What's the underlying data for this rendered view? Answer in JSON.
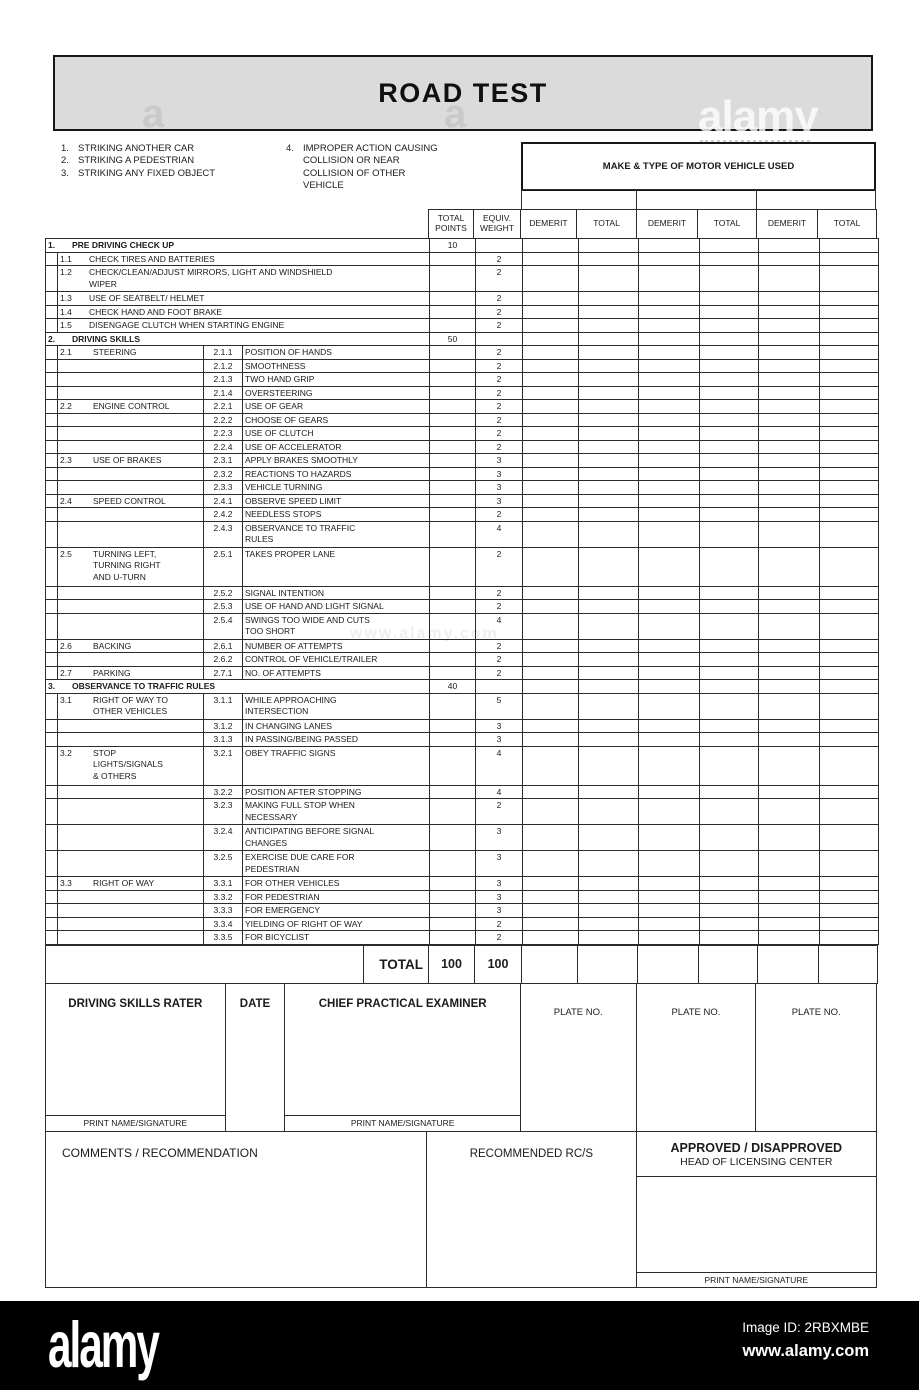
{
  "title": "ROAD TEST",
  "collision_notes": {
    "left": [
      {
        "num": "1.",
        "text": "STRIKING ANOTHER CAR"
      },
      {
        "num": "2.",
        "text": "STRIKING A PEDESTRIAN"
      },
      {
        "num": "3.",
        "text": "STRIKING ANY FIXED OBJECT"
      }
    ],
    "right": {
      "num": "4.",
      "text": "IMPROPER ACTION CAUSING\nCOLLISION OR NEAR\nCOLLISION OF OTHER\nVEHICLE"
    }
  },
  "vehicle_section": {
    "header": "MAKE & TYPE OF MOTOR VEHICLE USED"
  },
  "score_table": {
    "columns": [
      "TOTAL\nPOINTS",
      "EQUIV.\nWEIGHT",
      "DEMERIT",
      "TOTAL",
      "DEMERIT",
      "TOTAL",
      "DEMERIT",
      "TOTAL"
    ],
    "rows": [
      {
        "type": "section",
        "num": "1.",
        "title": "PRE DRIVING CHECK UP",
        "points": "10"
      },
      {
        "type": "simple",
        "num": "1.1",
        "text": "CHECK TIRES AND BATTERIES",
        "weight": "2"
      },
      {
        "type": "simple",
        "num": "1.2",
        "text": "CHECK/CLEAN/ADJUST MIRRORS, LIGHT AND WINDSHIELD\nWIPER",
        "weight": "2"
      },
      {
        "type": "simple",
        "num": "1.3",
        "text": "USE OF SEATBELT/ HELMET",
        "weight": "2"
      },
      {
        "type": "simple",
        "num": "1.4",
        "text": "CHECK HAND AND FOOT BRAKE",
        "weight": "2"
      },
      {
        "type": "simple",
        "num": "1.5",
        "text": "DISENGAGE CLUTCH WHEN STARTING ENGINE",
        "weight": "2"
      },
      {
        "type": "section",
        "num": "2.",
        "title": "DRIVING SKILLS",
        "points": "50"
      },
      {
        "type": "detail",
        "cat_num": "2.1",
        "cat": "STEERING",
        "code": "2.1.1",
        "desc": "POSITION OF HANDS",
        "weight": "2"
      },
      {
        "type": "detail",
        "cat_num": "",
        "cat": "",
        "code": "2.1.2",
        "desc": "SMOOTHNESS",
        "weight": "2"
      },
      {
        "type": "detail",
        "cat_num": "",
        "cat": "",
        "code": "2.1.3",
        "desc": "TWO HAND GRIP",
        "weight": "2"
      },
      {
        "type": "detail",
        "cat_num": "",
        "cat": "",
        "code": "2.1.4",
        "desc": "OVERSTEERING",
        "weight": "2"
      },
      {
        "type": "detail",
        "cat_num": "2.2",
        "cat": "ENGINE CONTROL",
        "code": "2.2.1",
        "desc": "USE OF GEAR",
        "weight": "2"
      },
      {
        "type": "detail",
        "cat_num": "",
        "cat": "",
        "code": "2.2.2",
        "desc": "CHOOSE OF GEARS",
        "weight": "2"
      },
      {
        "type": "detail",
        "cat_num": "",
        "cat": "",
        "code": "2.2.3",
        "desc": "USE OF CLUTCH",
        "weight": "2"
      },
      {
        "type": "detail",
        "cat_num": "",
        "cat": "",
        "code": "2.2.4",
        "desc": "USE OF ACCELERATOR",
        "weight": "2"
      },
      {
        "type": "detail",
        "cat_num": "2.3",
        "cat": "USE OF BRAKES",
        "code": "2.3.1",
        "desc": "APPLY BRAKES SMOOTHLY",
        "weight": "3"
      },
      {
        "type": "detail",
        "cat_num": "",
        "cat": "",
        "code": "2.3.2",
        "desc": "REACTIONS TO HAZARDS",
        "weight": "3"
      },
      {
        "type": "detail",
        "cat_num": "",
        "cat": "",
        "code": "2.3.3",
        "desc": "VEHICLE TURNING",
        "weight": "3"
      },
      {
        "type": "detail",
        "cat_num": "2.4",
        "cat": "SPEED CONTROL",
        "code": "2.4.1",
        "desc": "OBSERVE SPEED LIMIT",
        "weight": "3"
      },
      {
        "type": "detail",
        "cat_num": "",
        "cat": "",
        "code": "2.4.2",
        "desc": "NEEDLESS STOPS",
        "weight": "2"
      },
      {
        "type": "detail",
        "cat_num": "",
        "cat": "",
        "code": "2.4.3",
        "desc": "OBSERVANCE TO TRAFFIC\nRULES",
        "weight": "4"
      },
      {
        "type": "detail",
        "cat_num": "2.5",
        "cat": "TURNING LEFT,\nTURNING RIGHT\nAND U-TURN",
        "code": "2.5.1",
        "desc": "TAKES PROPER LANE",
        "weight": "2"
      },
      {
        "type": "detail",
        "cat_num": "",
        "cat": "",
        "code": "2.5.2",
        "desc": "SIGNAL INTENTION",
        "weight": "2"
      },
      {
        "type": "detail",
        "cat_num": "",
        "cat": "",
        "code": "2.5.3",
        "desc": "USE OF HAND AND LIGHT SIGNAL",
        "weight": "2"
      },
      {
        "type": "detail",
        "cat_num": "",
        "cat": "",
        "code": "2.5.4",
        "desc": "SWINGS TOO WIDE AND CUTS\nTOO SHORT",
        "weight": "4"
      },
      {
        "type": "detail",
        "cat_num": "2.6",
        "cat": "BACKING",
        "code": "2.6.1",
        "desc": "NUMBER OF ATTEMPTS",
        "weight": "2"
      },
      {
        "type": "detail",
        "cat_num": "",
        "cat": "",
        "code": "2.6.2",
        "desc": "CONTROL OF VEHICLE/TRAILER",
        "weight": "2"
      },
      {
        "type": "detail",
        "cat_num": "2.7",
        "cat": "PARKING",
        "code": "2.7.1",
        "desc": "NO. OF ATTEMPTS",
        "weight": "2"
      },
      {
        "type": "section",
        "num": "3.",
        "title": "OBSERVANCE TO TRAFFIC RULES",
        "points": "40"
      },
      {
        "type": "detail",
        "cat_num": "3.1",
        "cat": "RIGHT OF WAY TO\nOTHER VEHICLES",
        "code": "3.1.1",
        "desc": "WHILE APPROACHING\nINTERSECTION",
        "weight": "5"
      },
      {
        "type": "detail",
        "cat_num": "",
        "cat": "",
        "code": "3.1.2",
        "desc": "IN CHANGING LANES",
        "weight": "3"
      },
      {
        "type": "detail",
        "cat_num": "",
        "cat": "",
        "code": "3.1.3",
        "desc": "IN PASSING/BEING PASSED",
        "weight": "3"
      },
      {
        "type": "detail",
        "cat_num": "3.2",
        "cat": "STOP\nLIGHTS/SIGNALS\n& OTHERS",
        "code": "3.2.1",
        "desc": "OBEY TRAFFIC SIGNS",
        "weight": "4"
      },
      {
        "type": "detail",
        "cat_num": "",
        "cat": "",
        "code": "3.2.2",
        "desc": "POSITION AFTER STOPPING",
        "weight": "4"
      },
      {
        "type": "detail",
        "cat_num": "",
        "cat": "",
        "code": "3.2.3",
        "desc": "MAKING FULL STOP WHEN\nNECESSARY",
        "weight": "2"
      },
      {
        "type": "detail",
        "cat_num": "",
        "cat": "",
        "code": "3.2.4",
        "desc": "ANTICIPATING BEFORE SIGNAL\nCHANGES",
        "weight": "3"
      },
      {
        "type": "detail",
        "cat_num": "",
        "cat": "",
        "code": "3.2.5",
        "desc": "EXERCISE DUE CARE FOR\nPEDESTRIAN",
        "weight": "3"
      },
      {
        "type": "detail",
        "cat_num": "3.3",
        "cat": "RIGHT OF WAY",
        "code": "3.3.1",
        "desc": "FOR OTHER VEHICLES",
        "weight": "3"
      },
      {
        "type": "detail",
        "cat_num": "",
        "cat": "",
        "code": "3.3.2",
        "desc": "FOR PEDESTRIAN",
        "weight": "3"
      },
      {
        "type": "detail",
        "cat_num": "",
        "cat": "",
        "code": "3.3.3",
        "desc": "FOR EMERGENCY",
        "weight": "3"
      },
      {
        "type": "detail",
        "cat_num": "",
        "cat": "",
        "code": "3.3.4",
        "desc": "YIELDING OF RIGHT OF WAY",
        "weight": "2"
      },
      {
        "type": "detail",
        "cat_num": "",
        "cat": "",
        "code": "3.3.5",
        "desc": "FOR BICYCLIST",
        "weight": "2"
      }
    ],
    "total_row": {
      "label": "TOTAL",
      "total_points": "100",
      "equiv_weight": "100"
    }
  },
  "signature_section": {
    "rater_label": "DRIVING SKILLS RATER",
    "date_label": "DATE",
    "examiner_label": "CHIEF PRACTICAL EXAMINER",
    "print_label": "PRINT NAME/SIGNATURE",
    "plate_label": "PLATE NO."
  },
  "footer_section": {
    "comments_label": "COMMENTS / RECOMMENDATION",
    "recommended_label": "RECOMMENDED RC/S",
    "approved_label": "APPROVED / DISAPPROVED",
    "approved_sub": "HEAD OF LICENSING CENTER",
    "print_label": "PRINT NAME/SIGNATURE"
  },
  "watermarks": {
    "ghost_a": "a",
    "ghost_logo": "alamy",
    "ghost_url": "www.alamy.com"
  },
  "alamy_bar": {
    "logo": "alamy",
    "image_id": "Image ID: 2RBXMBE",
    "url": "www.alamy.com"
  },
  "colors": {
    "paper": "#ffffff",
    "header_fill": "#dbdbdb",
    "border": "#2b2b2b",
    "bar_bg": "#000000",
    "bar_text": "#ffffff"
  }
}
